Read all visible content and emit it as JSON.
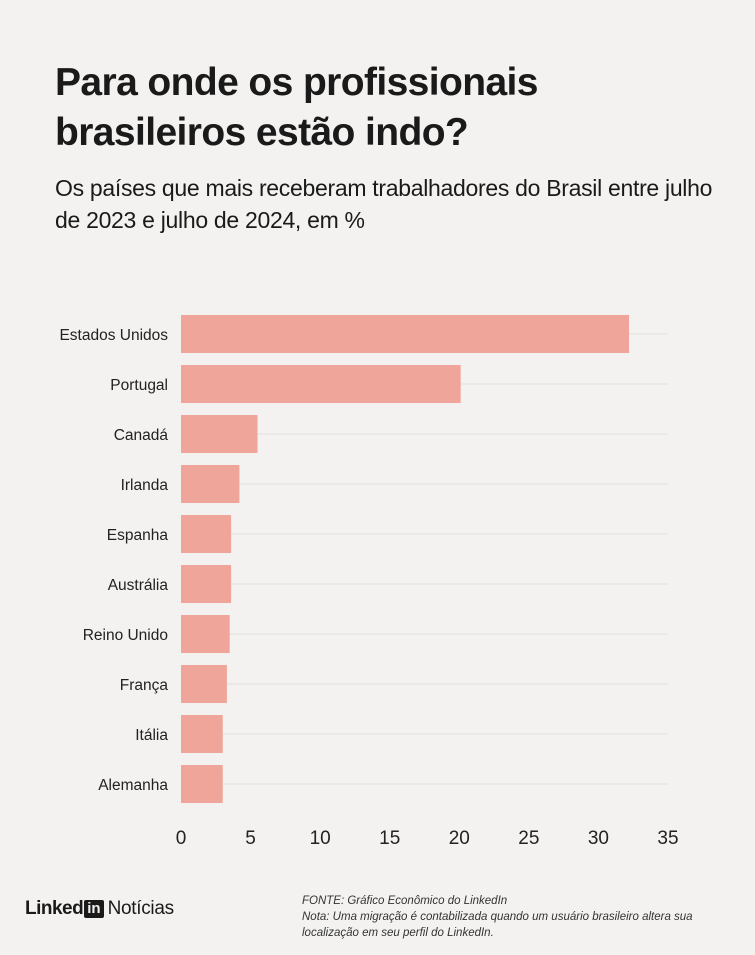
{
  "header": {
    "title": "Para onde os profissionais brasileiros estão indo?",
    "subtitle": "Os países que mais receberam trabalhadores do Brasil entre julho de 2023 e julho de 2024, em %"
  },
  "chart_data": {
    "type": "bar",
    "orientation": "horizontal",
    "categories": [
      "Estados Unidos",
      "Portugal",
      "Canadá",
      "Irlanda",
      "Espanha",
      "Austrália",
      "Reino Unido",
      "França",
      "Itália",
      "Alemanha"
    ],
    "values": [
      32.2,
      20.1,
      5.5,
      4.2,
      3.6,
      3.6,
      3.5,
      3.3,
      3.0,
      3.0
    ],
    "x_ticks": [
      0,
      5,
      10,
      15,
      20,
      25,
      30,
      35
    ],
    "xlim": [
      0,
      35
    ],
    "bar_color": "#f0a59b",
    "grid": true
  },
  "footer": {
    "brand_word": "Linked",
    "brand_box": "in",
    "brand_section": "Notícias",
    "source": "FONTE: Gráfico Econômico do LinkedIn",
    "note": "Nota: Uma migração é contabilizada quando um usuário brasileiro altera sua localização em seu perfil do LinkedIn."
  }
}
